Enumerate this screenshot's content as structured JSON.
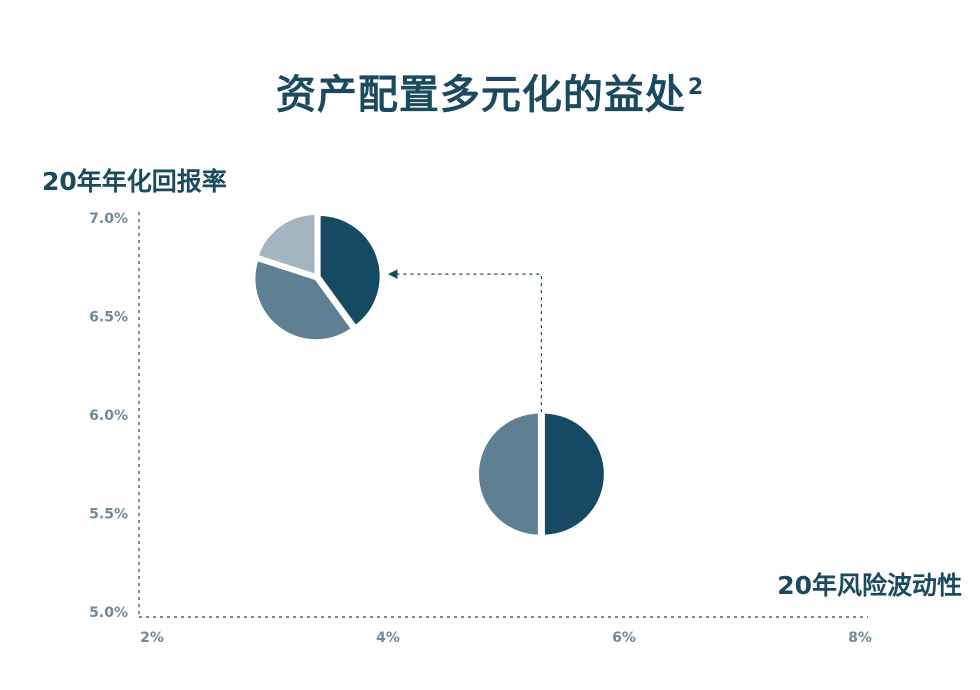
{
  "title": "资产配置多元化的益处",
  "title_superscript": "2",
  "chart_data": {
    "type": "scatter",
    "title": "资产配置多元化的益处",
    "xlabel": "20年风险波动性",
    "ylabel": "20年年化回报率",
    "xlim": [
      2,
      8
    ],
    "ylim": [
      5.0,
      7.0
    ],
    "x_ticks": [
      "2%",
      "4%",
      "6%",
      "8%"
    ],
    "x_tick_values": [
      2,
      4,
      6,
      8
    ],
    "y_ticks": [
      "7.0%",
      "6.5%",
      "6.0%",
      "5.5%",
      "5.0%"
    ],
    "y_tick_values": [
      7.0,
      6.5,
      6.0,
      5.5,
      5.0
    ],
    "grid": false,
    "points": [
      {
        "x": 5.3,
        "y": 5.7,
        "marker": "pie",
        "slices": [
          {
            "value": 50,
            "color": "#164a62"
          },
          {
            "value": 50,
            "color": "#5e8092"
          }
        ]
      },
      {
        "x": 3.4,
        "y": 6.7,
        "marker": "pie",
        "slices": [
          {
            "value": 40,
            "color": "#164a62"
          },
          {
            "value": 40,
            "color": "#5e8092"
          },
          {
            "value": 20,
            "color": "#a3b5c0"
          }
        ]
      }
    ],
    "arrow": {
      "from_point": 0,
      "to_point": 1
    },
    "colors": {
      "axis": "#1b4a5e",
      "tick_text": "#6e8a99"
    }
  }
}
